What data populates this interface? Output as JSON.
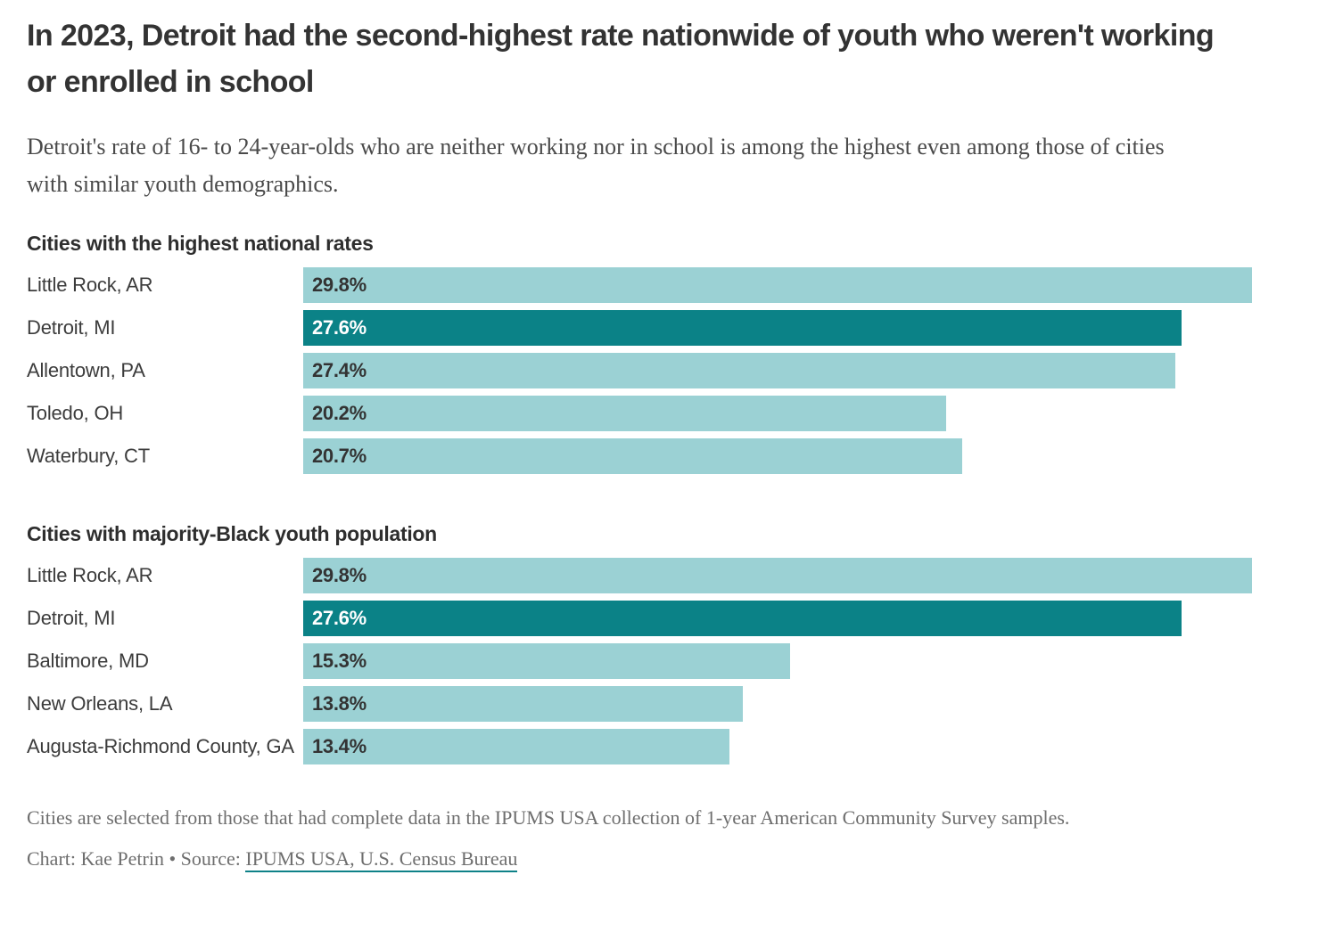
{
  "header": {
    "title": "In 2023, Detroit had the second-highest rate nationwide of youth who weren't working or enrolled in school",
    "subtitle": "Detroit's rate of 16- to 24-year-olds who are neither working nor in school is among the highest even among those of cities with similar youth demographics."
  },
  "colors": {
    "bar_light": "#9bd1d4",
    "bar_dark": "#0b8287",
    "value_on_light": "#333333",
    "value_on_dark": "#ffffff",
    "link_underline": "#0e8188"
  },
  "chart_data": [
    {
      "type": "bar",
      "orientation": "horizontal",
      "title": "Cities with the highest national rates",
      "categories": [
        "Little Rock, AR",
        "Detroit, MI",
        "Allentown, PA",
        "Toledo, OH",
        "Waterbury, CT"
      ],
      "values": [
        29.8,
        27.6,
        27.4,
        20.2,
        20.7
      ],
      "value_labels": [
        "29.8%",
        "27.6%",
        "27.4%",
        "20.2%",
        "20.7%"
      ],
      "highlighted": [
        "Detroit, MI"
      ],
      "xlim": [
        0,
        29.8
      ],
      "grid": false,
      "legend": false
    },
    {
      "type": "bar",
      "orientation": "horizontal",
      "title": "Cities with majority-Black youth population",
      "categories": [
        "Little Rock, AR",
        "Detroit, MI",
        "Baltimore, MD",
        "New Orleans, LA",
        "Augusta-Richmond County, GA"
      ],
      "values": [
        29.8,
        27.6,
        15.3,
        13.8,
        13.4
      ],
      "value_labels": [
        "29.8%",
        "27.6%",
        "15.3%",
        "13.8%",
        "13.4%"
      ],
      "highlighted": [
        "Detroit, MI"
      ],
      "xlim": [
        0,
        29.8
      ],
      "grid": false,
      "legend": false
    }
  ],
  "footer": {
    "note": "Cities are selected from those that had complete data in the IPUMS USA collection of 1-year American Community Survey samples.",
    "credit_prefix": "Chart: Kae Petrin • Source: ",
    "source_link": "IPUMS USA, U.S. Census Bureau"
  }
}
